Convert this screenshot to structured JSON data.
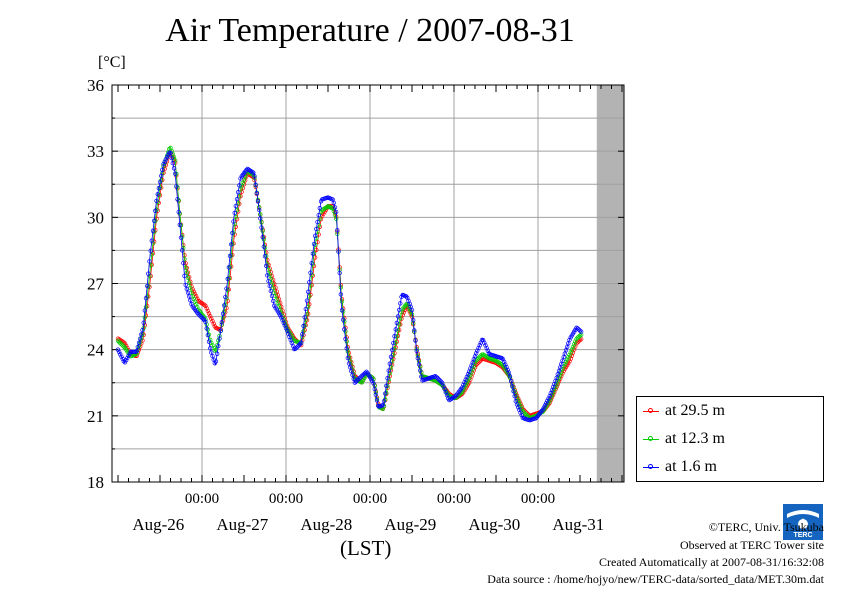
{
  "title": "Air Temperature / 2007-08-31",
  "unit_label": "[°C]",
  "footer": {
    "copyright": "©TERC, Univ. Tsukuba",
    "observed": "Observed at TERC Tower site",
    "created": "Created Automatically at 2007-08-31/16:32:08",
    "source": "Data source : /home/hojyo/new/TERC-data/sorted_data/MET.30m.dat"
  },
  "logo_text": "TERC",
  "chart_data": {
    "type": "line",
    "title": "Air Temperature / 2007-08-31",
    "ylabel": "[°C]",
    "xlabel": "(LST)",
    "ylim": [
      18,
      36
    ],
    "yticks": [
      18,
      21,
      24,
      27,
      30,
      33,
      36
    ],
    "xlim_days": [
      0,
      6
    ],
    "day_labels": [
      "Aug-26",
      "Aug-27",
      "Aug-28",
      "Aug-29",
      "Aug-30",
      "Aug-31"
    ],
    "midnight_label": "00:00",
    "grid": true,
    "legend_position": "right-bottom",
    "no_data_shaded_from_day": 5.7,
    "series": [
      {
        "name": "at 29.5 m",
        "color": "#ff0000",
        "points": [
          [
            0,
            24.5
          ],
          [
            0.08,
            24.3
          ],
          [
            0.15,
            23.8
          ],
          [
            0.22,
            23.7
          ],
          [
            0.3,
            24.5
          ],
          [
            0.38,
            27
          ],
          [
            0.46,
            30
          ],
          [
            0.54,
            32
          ],
          [
            0.62,
            33
          ],
          [
            0.68,
            32.5
          ],
          [
            0.74,
            30
          ],
          [
            0.8,
            28
          ],
          [
            0.88,
            26.8
          ],
          [
            0.96,
            26.2
          ],
          [
            1.04,
            26
          ],
          [
            1.1,
            25.5
          ],
          [
            1.16,
            25
          ],
          [
            1.22,
            24.9
          ],
          [
            1.3,
            26
          ],
          [
            1.38,
            29
          ],
          [
            1.46,
            31
          ],
          [
            1.54,
            32
          ],
          [
            1.62,
            31.8
          ],
          [
            1.7,
            30
          ],
          [
            1.78,
            28
          ],
          [
            1.86,
            27
          ],
          [
            1.94,
            26
          ],
          [
            2.02,
            25
          ],
          [
            2.1,
            24.5
          ],
          [
            2.18,
            24.2
          ],
          [
            2.26,
            25.5
          ],
          [
            2.34,
            28
          ],
          [
            2.42,
            30
          ],
          [
            2.5,
            30.5
          ],
          [
            2.56,
            30.5
          ],
          [
            2.6,
            30
          ],
          [
            2.66,
            26.5
          ],
          [
            2.74,
            24
          ],
          [
            2.82,
            22.8
          ],
          [
            2.9,
            22.5
          ],
          [
            2.96,
            22.9
          ],
          [
            3.04,
            22.7
          ],
          [
            3.1,
            21.5
          ],
          [
            3.16,
            21.3
          ],
          [
            3.22,
            22.5
          ],
          [
            3.3,
            24
          ],
          [
            3.38,
            25.5
          ],
          [
            3.44,
            26
          ],
          [
            3.5,
            25.5
          ],
          [
            3.56,
            24
          ],
          [
            3.62,
            22.8
          ],
          [
            3.7,
            22.7
          ],
          [
            3.78,
            22.6
          ],
          [
            3.86,
            22.4
          ],
          [
            3.94,
            22.0
          ],
          [
            4.02,
            21.8
          ],
          [
            4.1,
            22.0
          ],
          [
            4.18,
            22.5
          ],
          [
            4.26,
            23.3
          ],
          [
            4.34,
            23.6
          ],
          [
            4.42,
            23.5
          ],
          [
            4.5,
            23.4
          ],
          [
            4.58,
            23.2
          ],
          [
            4.66,
            22.8
          ],
          [
            4.74,
            22.0
          ],
          [
            4.82,
            21.3
          ],
          [
            4.9,
            21.0
          ],
          [
            4.98,
            21.1
          ],
          [
            5.06,
            21.2
          ],
          [
            5.14,
            21.6
          ],
          [
            5.22,
            22.3
          ],
          [
            5.3,
            23.0
          ],
          [
            5.38,
            23.5
          ],
          [
            5.46,
            24.3
          ],
          [
            5.52,
            24.5
          ]
        ]
      },
      {
        "name": "at 12.3 m",
        "color": "#00cc00",
        "points": [
          [
            0,
            24.4
          ],
          [
            0.08,
            24.1
          ],
          [
            0.15,
            23.7
          ],
          [
            0.22,
            23.8
          ],
          [
            0.3,
            24.8
          ],
          [
            0.38,
            27.5
          ],
          [
            0.46,
            30.4
          ],
          [
            0.54,
            32.3
          ],
          [
            0.62,
            33.2
          ],
          [
            0.68,
            32.6
          ],
          [
            0.74,
            30
          ],
          [
            0.8,
            27.8
          ],
          [
            0.88,
            26.5
          ],
          [
            0.96,
            25.8
          ],
          [
            1.04,
            25.4
          ],
          [
            1.1,
            24.4
          ],
          [
            1.16,
            23.9
          ],
          [
            1.22,
            24.8
          ],
          [
            1.3,
            26.5
          ],
          [
            1.38,
            29.5
          ],
          [
            1.46,
            31.3
          ],
          [
            1.54,
            32.1
          ],
          [
            1.62,
            31.9
          ],
          [
            1.7,
            30
          ],
          [
            1.78,
            27.8
          ],
          [
            1.86,
            26.6
          ],
          [
            1.94,
            25.7
          ],
          [
            2.02,
            24.9
          ],
          [
            2.1,
            24.4
          ],
          [
            2.18,
            24.3
          ],
          [
            2.26,
            25.8
          ],
          [
            2.34,
            28.6
          ],
          [
            2.42,
            30.3
          ],
          [
            2.5,
            30.5
          ],
          [
            2.56,
            30.4
          ],
          [
            2.6,
            29.9
          ],
          [
            2.66,
            26.4
          ],
          [
            2.74,
            23.8
          ],
          [
            2.82,
            22.7
          ],
          [
            2.9,
            22.5
          ],
          [
            2.96,
            22.9
          ],
          [
            3.04,
            22.7
          ],
          [
            3.1,
            21.4
          ],
          [
            3.16,
            21.3
          ],
          [
            3.22,
            22.6
          ],
          [
            3.3,
            24.2
          ],
          [
            3.38,
            25.8
          ],
          [
            3.44,
            26.1
          ],
          [
            3.5,
            25.6
          ],
          [
            3.56,
            23.9
          ],
          [
            3.62,
            22.8
          ],
          [
            3.7,
            22.7
          ],
          [
            3.78,
            22.6
          ],
          [
            3.86,
            22.4
          ],
          [
            3.94,
            21.9
          ],
          [
            4.02,
            21.8
          ],
          [
            4.1,
            22.1
          ],
          [
            4.18,
            22.7
          ],
          [
            4.26,
            23.5
          ],
          [
            4.34,
            23.8
          ],
          [
            4.42,
            23.6
          ],
          [
            4.5,
            23.5
          ],
          [
            4.58,
            23.3
          ],
          [
            4.66,
            22.8
          ],
          [
            4.74,
            21.9
          ],
          [
            4.82,
            21.2
          ],
          [
            4.9,
            20.9
          ],
          [
            4.98,
            21.0
          ],
          [
            5.06,
            21.2
          ],
          [
            5.14,
            21.7
          ],
          [
            5.22,
            22.4
          ],
          [
            5.3,
            23.2
          ],
          [
            5.38,
            23.8
          ],
          [
            5.46,
            24.5
          ],
          [
            5.52,
            24.7
          ]
        ]
      },
      {
        "name": "at 1.6 m",
        "color": "#0000ff",
        "points": [
          [
            0,
            24.0
          ],
          [
            0.08,
            23.4
          ],
          [
            0.15,
            23.9
          ],
          [
            0.22,
            23.9
          ],
          [
            0.3,
            25.0
          ],
          [
            0.38,
            28.2
          ],
          [
            0.46,
            30.8
          ],
          [
            0.54,
            32.4
          ],
          [
            0.62,
            33.0
          ],
          [
            0.68,
            32.0
          ],
          [
            0.74,
            29.5
          ],
          [
            0.8,
            27.0
          ],
          [
            0.88,
            26.0
          ],
          [
            0.96,
            25.6
          ],
          [
            1.04,
            25.3
          ],
          [
            1.1,
            24.0
          ],
          [
            1.16,
            23.3
          ],
          [
            1.22,
            24.8
          ],
          [
            1.3,
            27.0
          ],
          [
            1.38,
            30.0
          ],
          [
            1.46,
            31.8
          ],
          [
            1.54,
            32.2
          ],
          [
            1.62,
            32.0
          ],
          [
            1.7,
            29.8
          ],
          [
            1.78,
            27.3
          ],
          [
            1.86,
            26.0
          ],
          [
            1.94,
            25.5
          ],
          [
            2.02,
            24.8
          ],
          [
            2.1,
            24.0
          ],
          [
            2.18,
            24.3
          ],
          [
            2.26,
            26.5
          ],
          [
            2.34,
            29.0
          ],
          [
            2.42,
            30.8
          ],
          [
            2.5,
            30.9
          ],
          [
            2.56,
            30.8
          ],
          [
            2.6,
            30.2
          ],
          [
            2.66,
            26.0
          ],
          [
            2.74,
            23.5
          ],
          [
            2.82,
            22.5
          ],
          [
            2.9,
            22.8
          ],
          [
            2.96,
            23.0
          ],
          [
            3.04,
            22.5
          ],
          [
            3.1,
            21.4
          ],
          [
            3.16,
            21.5
          ],
          [
            3.22,
            23.0
          ],
          [
            3.3,
            24.8
          ],
          [
            3.38,
            26.5
          ],
          [
            3.44,
            26.4
          ],
          [
            3.5,
            25.8
          ],
          [
            3.56,
            23.8
          ],
          [
            3.62,
            22.6
          ],
          [
            3.7,
            22.7
          ],
          [
            3.78,
            22.8
          ],
          [
            3.86,
            22.5
          ],
          [
            3.94,
            21.7
          ],
          [
            4.02,
            21.9
          ],
          [
            4.1,
            22.3
          ],
          [
            4.18,
            23.0
          ],
          [
            4.26,
            23.8
          ],
          [
            4.34,
            24.5
          ],
          [
            4.42,
            23.8
          ],
          [
            4.5,
            23.7
          ],
          [
            4.58,
            23.6
          ],
          [
            4.66,
            22.9
          ],
          [
            4.74,
            21.6
          ],
          [
            4.82,
            20.9
          ],
          [
            4.9,
            20.8
          ],
          [
            4.98,
            20.9
          ],
          [
            5.06,
            21.3
          ],
          [
            5.14,
            21.9
          ],
          [
            5.22,
            22.7
          ],
          [
            5.3,
            23.6
          ],
          [
            5.38,
            24.5
          ],
          [
            5.46,
            25.0
          ],
          [
            5.52,
            24.8
          ]
        ]
      }
    ]
  }
}
